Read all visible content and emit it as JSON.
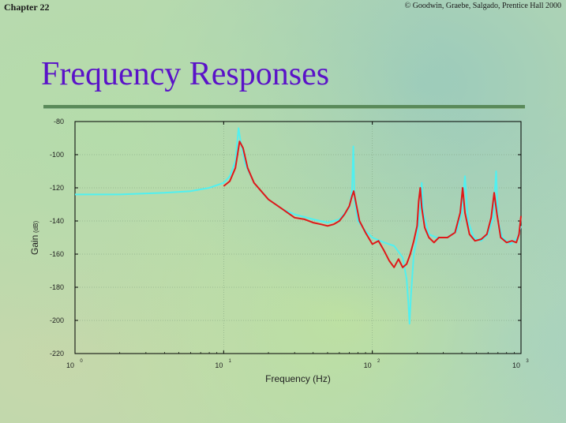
{
  "header": {
    "chapter": "Chapter 22",
    "copyright": "© Goodwin, Graebe, Salgado, Prentice Hall 2000"
  },
  "title": "Frequency Responses",
  "chart_data": {
    "type": "line",
    "xscale": "log",
    "xlim": [
      1,
      1000
    ],
    "ylim": [
      -220,
      -80
    ],
    "xlabel": "Frequency (Hz)",
    "ylabel": "Gain",
    "ylabel_unit": "(dB)",
    "xticks": [
      {
        "base": "10",
        "exp": "0",
        "value": 1
      },
      {
        "base": "10",
        "exp": "1",
        "value": 10
      },
      {
        "base": "10",
        "exp": "2",
        "value": 100
      },
      {
        "base": "10",
        "exp": "3",
        "value": 1000
      }
    ],
    "yticks": [
      "-80",
      "-100",
      "-120",
      "-140",
      "-160",
      "-180",
      "-200",
      "-220"
    ],
    "grid": true,
    "series": [
      {
        "color": "#50f0f0",
        "points": [
          [
            1,
            -124
          ],
          [
            2,
            -124
          ],
          [
            4,
            -123
          ],
          [
            6,
            -122
          ],
          [
            8,
            -120
          ],
          [
            10,
            -117
          ],
          [
            11,
            -113
          ],
          [
            12,
            -104
          ],
          [
            12.6,
            -84
          ],
          [
            13,
            -92
          ],
          [
            14,
            -106
          ],
          [
            16,
            -117
          ],
          [
            20,
            -127
          ],
          [
            25,
            -133
          ],
          [
            30,
            -136
          ],
          [
            40,
            -139
          ],
          [
            50,
            -141
          ],
          [
            60,
            -139
          ],
          [
            70,
            -132
          ],
          [
            73,
            -122
          ],
          [
            74.5,
            -95
          ],
          [
            76,
            -128
          ],
          [
            80,
            -140
          ],
          [
            90,
            -146
          ],
          [
            100,
            -150
          ],
          [
            120,
            -153
          ],
          [
            140,
            -155
          ],
          [
            160,
            -162
          ],
          [
            170,
            -175
          ],
          [
            175,
            -190
          ],
          [
            178,
            -202
          ],
          [
            182,
            -185
          ],
          [
            190,
            -160
          ],
          [
            200,
            -150
          ],
          [
            210,
            -132
          ],
          [
            215,
            -117
          ],
          [
            220,
            -135
          ],
          [
            240,
            -148
          ],
          [
            270,
            -150
          ],
          [
            320,
            -150
          ],
          [
            370,
            -146
          ],
          [
            400,
            -135
          ],
          [
            420,
            -113
          ],
          [
            440,
            -140
          ],
          [
            480,
            -150
          ],
          [
            540,
            -152
          ],
          [
            600,
            -148
          ],
          [
            650,
            -138
          ],
          [
            680,
            -110
          ],
          [
            700,
            -140
          ],
          [
            750,
            -150
          ],
          [
            850,
            -154
          ],
          [
            950,
            -150
          ],
          [
            1000,
            -143
          ]
        ]
      },
      {
        "color": "#e01818",
        "points": [
          [
            10,
            -119
          ],
          [
            11,
            -116
          ],
          [
            12,
            -108
          ],
          [
            12.8,
            -92
          ],
          [
            13.5,
            -96
          ],
          [
            14.5,
            -108
          ],
          [
            16,
            -117
          ],
          [
            20,
            -127
          ],
          [
            25,
            -133
          ],
          [
            30,
            -138
          ],
          [
            35,
            -139
          ],
          [
            40,
            -141
          ],
          [
            45,
            -142
          ],
          [
            50,
            -143
          ],
          [
            55,
            -142
          ],
          [
            60,
            -140
          ],
          [
            65,
            -136
          ],
          [
            70,
            -131
          ],
          [
            73,
            -125
          ],
          [
            75,
            -122
          ],
          [
            78,
            -130
          ],
          [
            82,
            -140
          ],
          [
            90,
            -147
          ],
          [
            100,
            -154
          ],
          [
            110,
            -152
          ],
          [
            120,
            -158
          ],
          [
            130,
            -164
          ],
          [
            140,
            -168
          ],
          [
            150,
            -163
          ],
          [
            160,
            -168
          ],
          [
            170,
            -166
          ],
          [
            180,
            -160
          ],
          [
            190,
            -152
          ],
          [
            200,
            -143
          ],
          [
            205,
            -128
          ],
          [
            210,
            -120
          ],
          [
            215,
            -132
          ],
          [
            225,
            -144
          ],
          [
            240,
            -150
          ],
          [
            260,
            -153
          ],
          [
            280,
            -150
          ],
          [
            320,
            -150
          ],
          [
            360,
            -147
          ],
          [
            390,
            -135
          ],
          [
            405,
            -120
          ],
          [
            420,
            -135
          ],
          [
            450,
            -148
          ],
          [
            490,
            -152
          ],
          [
            540,
            -151
          ],
          [
            590,
            -148
          ],
          [
            630,
            -138
          ],
          [
            660,
            -123
          ],
          [
            690,
            -136
          ],
          [
            730,
            -150
          ],
          [
            800,
            -153
          ],
          [
            870,
            -152
          ],
          [
            930,
            -153
          ],
          [
            970,
            -148
          ],
          [
            1000,
            -137
          ]
        ]
      }
    ]
  }
}
